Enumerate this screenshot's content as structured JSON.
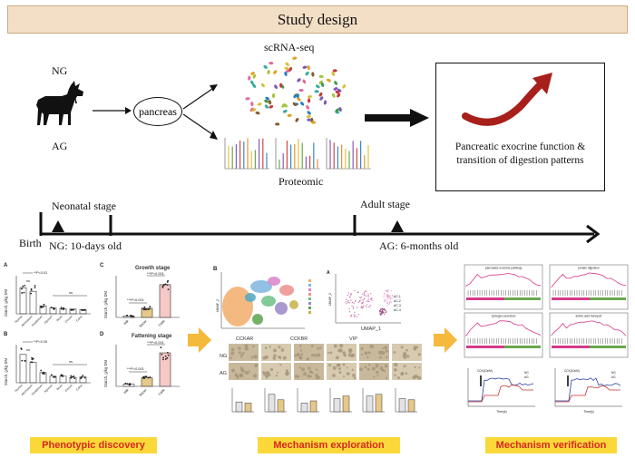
{
  "header": {
    "title": "Study design"
  },
  "groups": {
    "ng": "NG",
    "ag": "AG"
  },
  "tissue": "pancreas",
  "methods": {
    "scrna": "scRNA-seq",
    "proteomic": "Proteomic"
  },
  "outcome": {
    "line1": "Pancreatic exocrine function  &",
    "line2": "transition of digestion patterns"
  },
  "timeline": {
    "neonatal": "Neonatal stage",
    "adult": "Adult stage",
    "birth": "Birth",
    "ng_age": "NG: 10-days old",
    "ag_age": "AG: 6-months old"
  },
  "phenotype": {
    "panels": [
      "A",
      "B",
      "C",
      "D"
    ],
    "growth_title": "Growth stage",
    "fattening_title": "Fattening stage",
    "ylabel": "Starch, g/kg DM",
    "regions": [
      "Rumen",
      "Abomasum",
      "Duodenum",
      "Jejunum",
      "Ileum",
      "Cecum",
      "Colon"
    ],
    "feeds": [
      "Milk",
      "Starter",
      "Cattle"
    ],
    "p_small": "P<0.01",
    "p_small_b": "P<0.05",
    "p_large": "P<0.001",
    "ns": "ns",
    "sig": "***"
  },
  "mechanism": {
    "panel_b": "B",
    "panel_a": "A",
    "umap1": "UMAP_1",
    "umap2": "UMAP_2",
    "ihc_labels": [
      "CCKAR",
      "CCKBR",
      "VIP"
    ],
    "row_labels": [
      "NG",
      "AG"
    ],
    "clusters": [
      "AC-1",
      "AC-2",
      "AC-3",
      "AC-4"
    ],
    "bar_groups": [
      "NG",
      "AG"
    ]
  },
  "verification": {
    "gsea_titles": [
      "pancreatic exocrine pathway",
      "protein digestion",
      "zymogen secretion",
      "amino acid transport"
    ],
    "trace_labels": [
      "CCK(10nM)",
      "CCK(10nM)"
    ],
    "legend": [
      "NG",
      "AG"
    ],
    "xlabel": "Time(s)"
  },
  "footer": {
    "phenotypic": "Phenotypic discovery",
    "mechanism": "Mechanism exploration",
    "verification": "Mechanism verification"
  },
  "colors": {
    "banner": "#f3dfc6",
    "chip_bg": "#fbd83a",
    "chip_text": "#d6281e",
    "arrow_red": "#a8201c",
    "step_arrow": "#f5b93b",
    "bar_pink": "#f6c8c8",
    "bar_tan": "#e6c989"
  }
}
